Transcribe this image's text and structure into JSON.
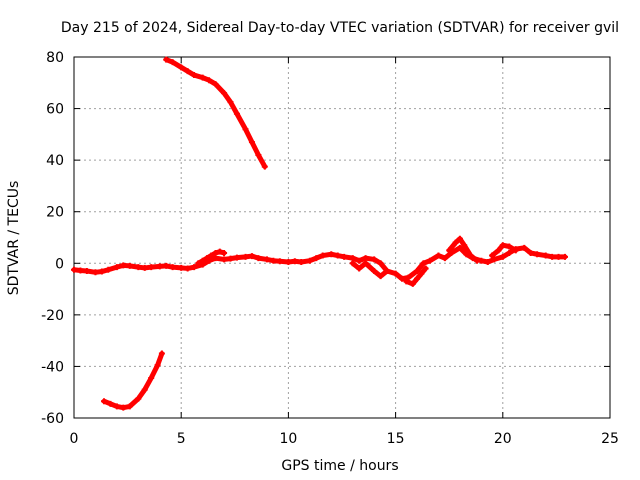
{
  "chart_data": {
    "type": "scatter",
    "title": "Day 215 of 2024, Sidereal Day-to-day VTEC variation (SDTVAR) for receiver gvil",
    "xlabel": "GPS time / hours",
    "ylabel": "SDTVAR / TECUs",
    "xlim": [
      0,
      25
    ],
    "ylim": [
      -60,
      80
    ],
    "xticks": [
      0,
      5,
      10,
      15,
      20,
      25
    ],
    "yticks": [
      -60,
      -40,
      -20,
      0,
      20,
      40,
      60,
      80
    ],
    "grid": true,
    "marker": "+",
    "series": [
      {
        "name": "main",
        "color": "#ff0000",
        "x": [
          0.0,
          0.3,
          0.6,
          1.0,
          1.3,
          1.6,
          2.0,
          2.3,
          2.6,
          3.0,
          3.3,
          3.6,
          4.0,
          4.3,
          4.6,
          5.0,
          5.3,
          5.6,
          6.0,
          6.3,
          6.6,
          7.0,
          7.3,
          7.6,
          8.0,
          8.3,
          8.6,
          9.0,
          9.3,
          9.6,
          10.0,
          10.3,
          10.6,
          11.0,
          11.3,
          11.6,
          12.0,
          12.3,
          12.6,
          13.0,
          13.3,
          13.6,
          14.0,
          14.3,
          14.6,
          15.0,
          15.3,
          15.6,
          16.0,
          16.3,
          16.6,
          17.0,
          17.3,
          17.6,
          18.0,
          18.3,
          18.6,
          19.0,
          19.3,
          19.6,
          20.0,
          20.3,
          20.6,
          21.0,
          21.3,
          21.6,
          22.0,
          22.3,
          22.6,
          22.9
        ],
        "y": [
          -2.5,
          -2.8,
          -3.0,
          -3.5,
          -3.2,
          -2.5,
          -1.5,
          -0.8,
          -1.0,
          -1.5,
          -1.8,
          -1.5,
          -1.2,
          -1.0,
          -1.5,
          -1.8,
          -2.0,
          -1.5,
          -0.5,
          1.0,
          2.0,
          1.5,
          1.8,
          2.2,
          2.5,
          2.8,
          2.0,
          1.5,
          1.0,
          0.8,
          0.5,
          0.8,
          0.5,
          1.0,
          2.0,
          3.0,
          3.5,
          3.0,
          2.5,
          2.0,
          1.0,
          2.0,
          1.5,
          0.0,
          -3.0,
          -4.0,
          -6.0,
          -5.5,
          -3.0,
          0.0,
          1.0,
          3.0,
          2.0,
          4.0,
          6.0,
          3.5,
          2.0,
          1.0,
          0.5,
          1.5,
          2.5,
          4.0,
          5.5,
          6.0,
          4.0,
          3.5,
          3.0,
          2.5,
          2.5,
          2.5
        ]
      },
      {
        "name": "wave-a",
        "color": "#ff0000",
        "x": [
          5.8,
          6.0,
          6.2,
          6.4,
          6.6,
          6.8,
          7.0
        ],
        "y": [
          0.0,
          1.0,
          2.0,
          3.0,
          4.0,
          4.5,
          4.0
        ]
      },
      {
        "name": "wave-b",
        "color": "#ff0000",
        "x": [
          13.0,
          13.3,
          13.6,
          14.0,
          14.3,
          14.6
        ],
        "y": [
          0.0,
          -2.0,
          0.0,
          -3.0,
          -5.0,
          -3.0
        ]
      },
      {
        "name": "wave-c",
        "color": "#ff0000",
        "x": [
          15.5,
          15.8,
          16.0,
          16.2,
          16.4
        ],
        "y": [
          -7.0,
          -8.0,
          -6.0,
          -4.0,
          -2.0
        ]
      },
      {
        "name": "wave-d",
        "color": "#ff0000",
        "x": [
          17.5,
          17.8,
          18.0,
          18.2,
          18.5,
          18.8
        ],
        "y": [
          5.0,
          8.0,
          9.5,
          7.0,
          3.0,
          1.0
        ]
      },
      {
        "name": "wave-e",
        "color": "#ff0000",
        "x": [
          19.5,
          19.8,
          20.0,
          20.3,
          20.6
        ],
        "y": [
          3.0,
          5.0,
          7.0,
          6.5,
          5.0
        ]
      },
      {
        "name": "upper-arc",
        "color": "#ff0000",
        "x": [
          4.3,
          4.6,
          5.0,
          5.3,
          5.6,
          6.0,
          6.3,
          6.6,
          7.0,
          7.3,
          7.6,
          8.0,
          8.3,
          8.6,
          8.9
        ],
        "y": [
          79.0,
          78.0,
          76.0,
          74.5,
          73.0,
          72.0,
          71.0,
          69.5,
          66.0,
          62.5,
          58.0,
          52.0,
          47.0,
          42.0,
          37.5
        ]
      },
      {
        "name": "lower-arc",
        "color": "#ff0000",
        "x": [
          1.4,
          1.7,
          2.0,
          2.3,
          2.6,
          3.0,
          3.3,
          3.6,
          3.9,
          4.1
        ],
        "y": [
          -53.5,
          -54.5,
          -55.5,
          -56.0,
          -55.5,
          -52.5,
          -49.0,
          -44.5,
          -39.5,
          -35.0
        ]
      }
    ]
  }
}
